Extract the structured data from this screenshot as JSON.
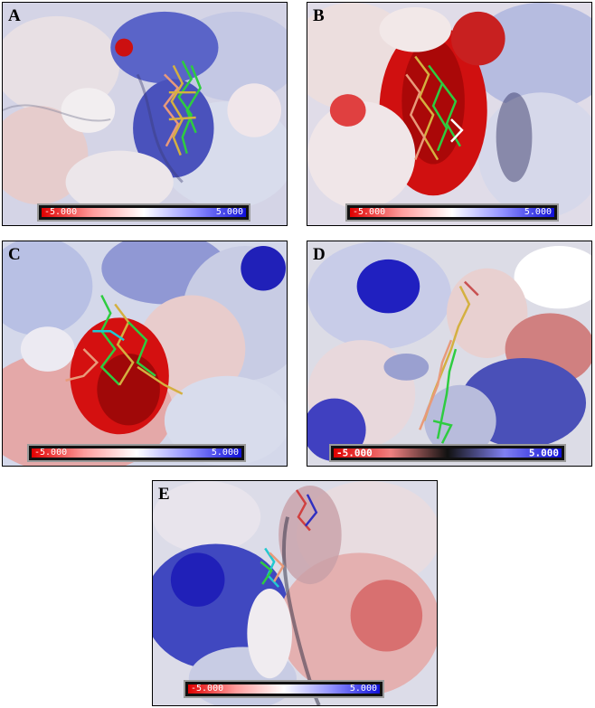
{
  "panels": [
    {
      "label": "A",
      "scale_min": "-5.000",
      "scale_max": "5.000"
    },
    {
      "label": "B",
      "scale_min": "-5.000",
      "scale_max": "5.000"
    },
    {
      "label": "C",
      "scale_min": "-5.000",
      "scale_max": "5.000"
    },
    {
      "label": "D",
      "scale_min": "-5.000",
      "scale_max": "5.000"
    },
    {
      "label": "E",
      "scale_min": "-5.000",
      "scale_max": "5.000"
    }
  ],
  "colors": {
    "negative": "#e00000",
    "neutral": "#ffffff",
    "positive": "#1010d8",
    "ligand_green": "#2ecc40",
    "ligand_yellow": "#d4b040",
    "ligand_salmon": "#e89a7a",
    "ligand_cyan": "#20c8d0"
  },
  "scale_bar": {
    "gradient": [
      "#e00000",
      "#ffffff",
      "#1010d8"
    ]
  }
}
